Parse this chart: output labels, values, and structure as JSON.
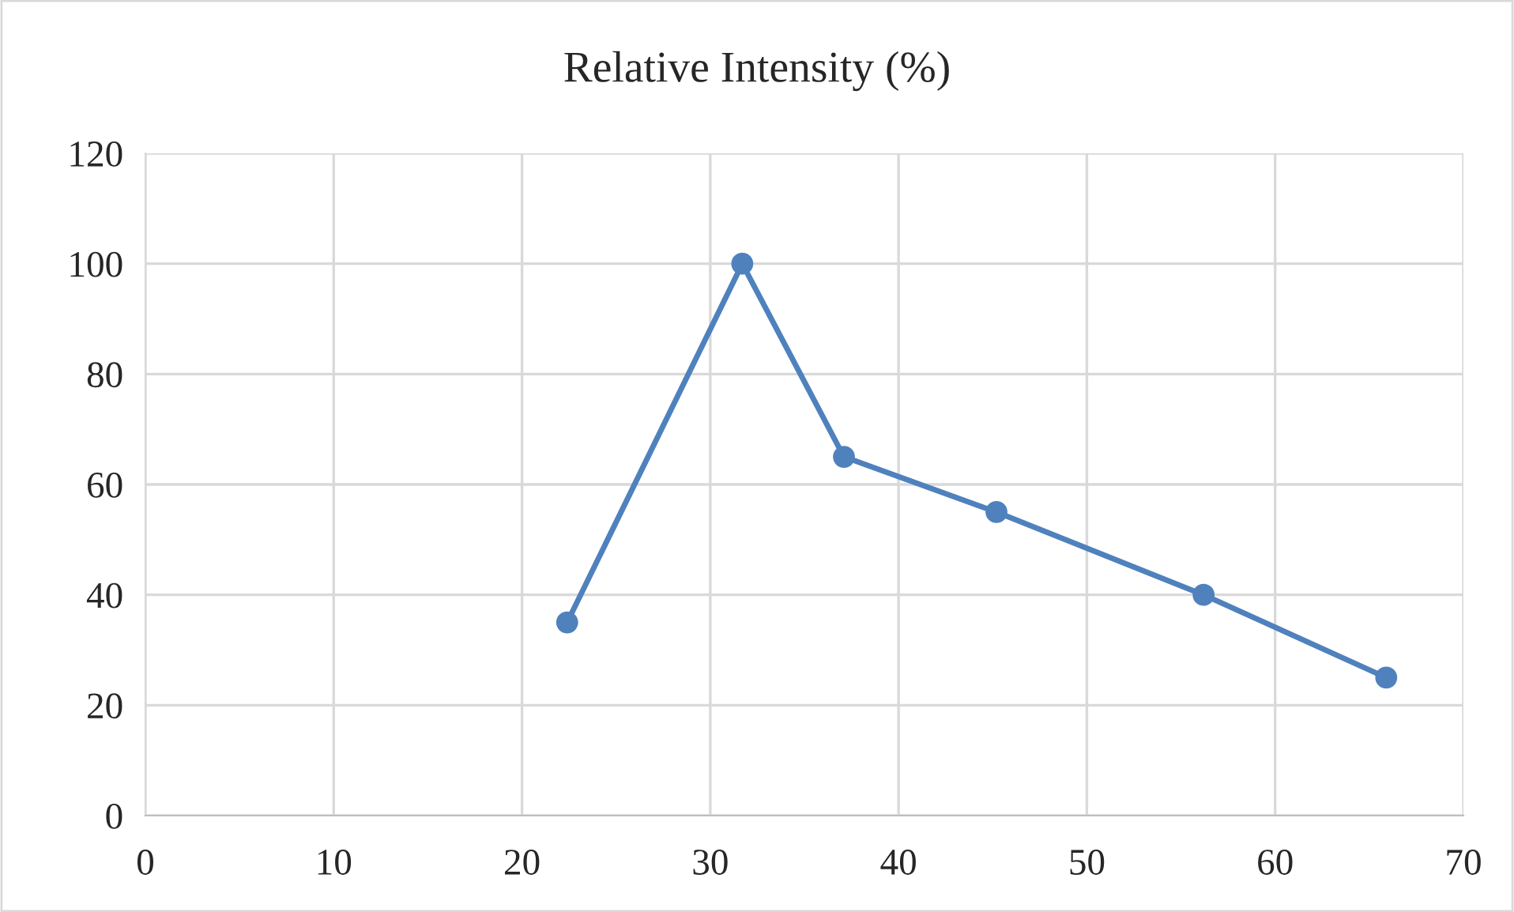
{
  "chart_data": {
    "type": "line",
    "title": "Relative Intensity (%)",
    "x": [
      22.4,
      31.7,
      37.1,
      45.2,
      56.2,
      65.9
    ],
    "series": [
      {
        "color": "#4f81bd",
        "values": [
          35,
          100,
          65,
          55,
          40,
          25
        ]
      }
    ],
    "xlim": [
      0,
      70
    ],
    "xticks": [
      0,
      10,
      20,
      30,
      40,
      50,
      60,
      70
    ],
    "ylim": [
      0,
      120
    ],
    "yticks": [
      0,
      20,
      40,
      60,
      80,
      100,
      120
    ],
    "grid": true,
    "marker": "circle",
    "line_style": "solid"
  }
}
